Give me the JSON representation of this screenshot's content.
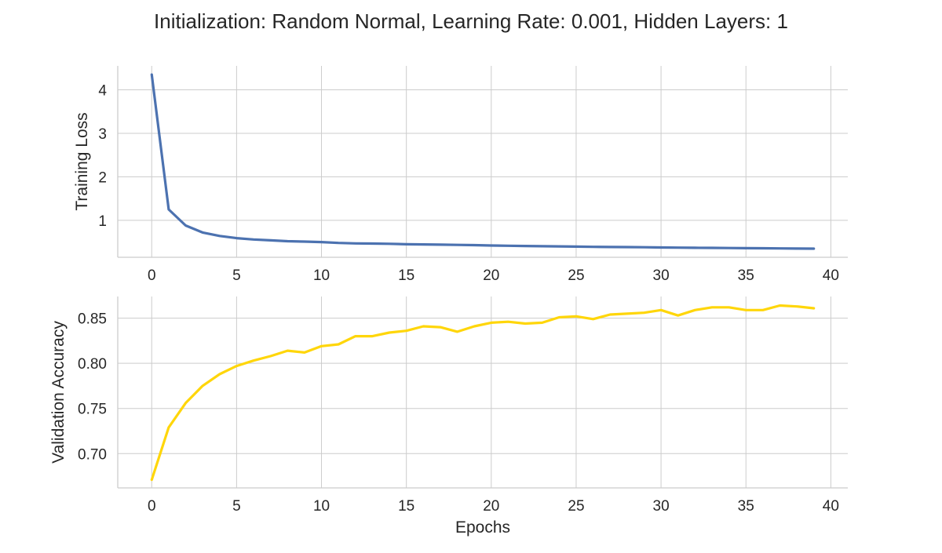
{
  "title": "Initialization: Random Normal, Learning Rate: 0.001, Hidden Layers: 1",
  "colors": {
    "loss": "#4c72b0",
    "accuracy": "#ffd60a",
    "grid": "#cccccc",
    "text": "#262626"
  },
  "chart_data": [
    {
      "type": "line",
      "subplot": "top",
      "xlabel": "",
      "ylabel": "Training Loss",
      "xlim": [
        -2,
        41
      ],
      "ylim": [
        0.15,
        4.55
      ],
      "xticks": [
        0,
        5,
        10,
        15,
        20,
        25,
        30,
        35,
        40
      ],
      "yticks": [
        1,
        2,
        3,
        4
      ],
      "grid": true,
      "series": [
        {
          "color": "#4c72b0",
          "x": [
            0,
            1,
            2,
            3,
            4,
            5,
            6,
            7,
            8,
            9,
            10,
            11,
            12,
            13,
            14,
            15,
            16,
            17,
            18,
            19,
            20,
            21,
            22,
            23,
            24,
            25,
            26,
            27,
            28,
            29,
            30,
            31,
            32,
            33,
            34,
            35,
            36,
            37,
            38,
            39
          ],
          "y": [
            4.35,
            1.25,
            0.88,
            0.72,
            0.64,
            0.59,
            0.56,
            0.54,
            0.52,
            0.51,
            0.5,
            0.48,
            0.47,
            0.465,
            0.46,
            0.45,
            0.445,
            0.44,
            0.435,
            0.43,
            0.42,
            0.415,
            0.41,
            0.405,
            0.4,
            0.395,
            0.39,
            0.387,
            0.384,
            0.38,
            0.376,
            0.372,
            0.369,
            0.366,
            0.363,
            0.36,
            0.357,
            0.354,
            0.351,
            0.348
          ]
        }
      ]
    },
    {
      "type": "line",
      "subplot": "bottom",
      "xlabel": "Epochs",
      "ylabel": "Validation Accuracy",
      "xlim": [
        -2,
        41
      ],
      "ylim": [
        0.662,
        0.874
      ],
      "xticks": [
        0,
        5,
        10,
        15,
        20,
        25,
        30,
        35,
        40
      ],
      "yticks": [
        0.7,
        0.75,
        0.8,
        0.85
      ],
      "ytick_labels": [
        "0.70",
        "0.75",
        "0.80",
        "0.85"
      ],
      "grid": true,
      "series": [
        {
          "color": "#ffd60a",
          "x": [
            0,
            1,
            2,
            3,
            4,
            5,
            6,
            7,
            8,
            9,
            10,
            11,
            12,
            13,
            14,
            15,
            16,
            17,
            18,
            19,
            20,
            21,
            22,
            23,
            24,
            25,
            26,
            27,
            28,
            29,
            30,
            31,
            32,
            33,
            34,
            35,
            36,
            37,
            38,
            39
          ],
          "y": [
            0.671,
            0.729,
            0.756,
            0.775,
            0.788,
            0.797,
            0.803,
            0.808,
            0.814,
            0.812,
            0.819,
            0.821,
            0.83,
            0.83,
            0.834,
            0.836,
            0.841,
            0.84,
            0.835,
            0.841,
            0.845,
            0.846,
            0.844,
            0.845,
            0.851,
            0.852,
            0.849,
            0.854,
            0.855,
            0.856,
            0.859,
            0.853,
            0.859,
            0.862,
            0.862,
            0.859,
            0.859,
            0.864,
            0.863,
            0.861
          ]
        }
      ]
    }
  ]
}
